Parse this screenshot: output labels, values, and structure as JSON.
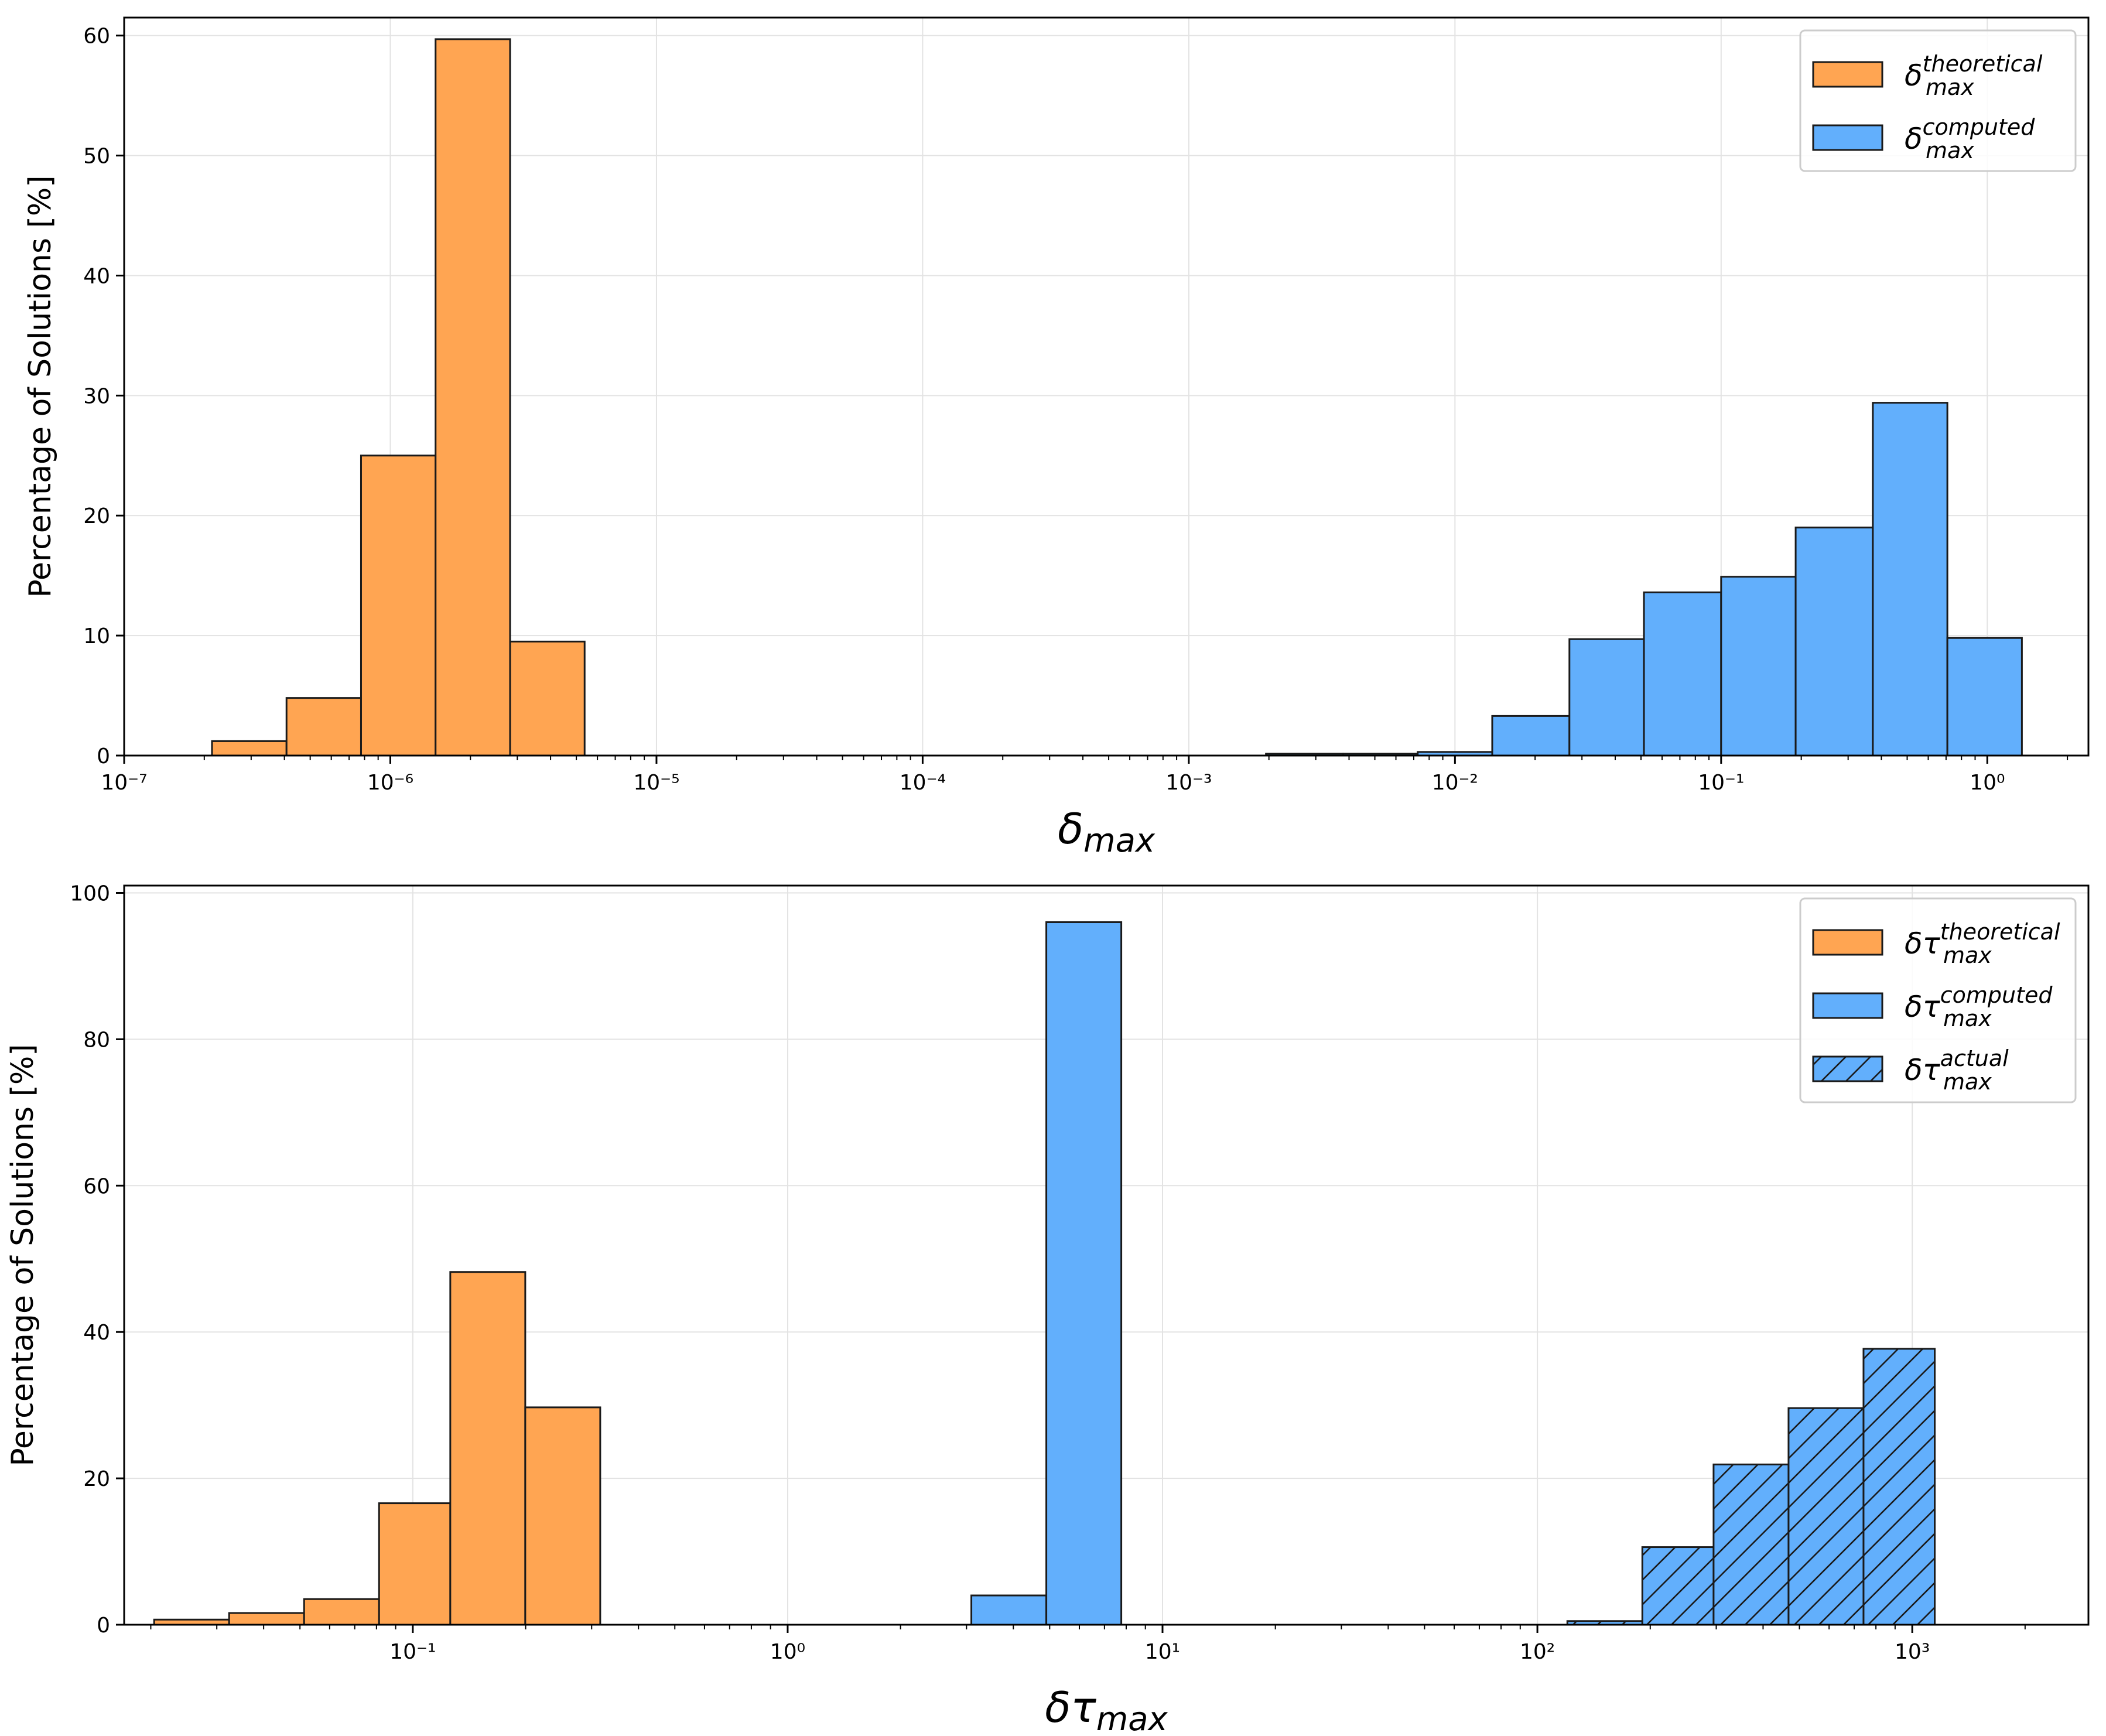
{
  "colors": {
    "theoretical": "#FFA552",
    "computed": "#62AFFC",
    "edge": "#1a1a1a"
  },
  "chart_data": [
    {
      "type": "bar",
      "title": "",
      "xscale": "log",
      "xlim_exp": [
        -7,
        0.38
      ],
      "ylim": [
        0,
        61.5
      ],
      "yticks": [
        0,
        10,
        20,
        30,
        40,
        50,
        60
      ],
      "ytick_labels": [
        "0",
        "10",
        "20",
        "30",
        "40",
        "50",
        "60"
      ],
      "xtick_labels": [
        "10⁻⁷",
        "10⁻⁶",
        "10⁻⁵",
        "10⁻⁴",
        "10⁻³",
        "10⁻²",
        "10⁻¹",
        "10⁰"
      ],
      "xtick_exps": [
        -7,
        -6,
        -5,
        -4,
        -3,
        -2,
        -1,
        0
      ],
      "xlabel": {
        "base": "δ",
        "sub": "max"
      },
      "ylabel": "Percentage of Solutions [%]",
      "legend": {
        "placement": "top-right",
        "entries": [
          {
            "base": "δ",
            "sup": "theoretical",
            "sub": "max",
            "color_key": "theoretical",
            "hatch": false
          },
          {
            "base": "δ",
            "sup": "computed",
            "sub": "max",
            "color_key": "computed",
            "hatch": false
          }
        ]
      },
      "series": [
        {
          "name": "δ_max theoretical",
          "color_key": "theoretical",
          "hatch": false,
          "bins": [
            {
              "from": -6.67,
              "to": -6.39,
              "value": 1.2
            },
            {
              "from": -6.39,
              "to": -6.11,
              "value": 4.8
            },
            {
              "from": -6.11,
              "to": -5.83,
              "value": 25.0
            },
            {
              "from": -5.83,
              "to": -5.55,
              "value": 59.7
            },
            {
              "from": -5.55,
              "to": -5.27,
              "value": 9.5
            }
          ]
        },
        {
          "name": "δ_max computed",
          "color_key": "computed",
          "hatch": false,
          "bins": [
            {
              "from": -2.71,
              "to": -2.42,
              "value": 0.15
            },
            {
              "from": -2.42,
              "to": -2.14,
              "value": 0.15
            },
            {
              "from": -2.14,
              "to": -1.86,
              "value": 0.3
            },
            {
              "from": -1.86,
              "to": -1.57,
              "value": 3.3
            },
            {
              "from": -1.57,
              "to": -1.29,
              "value": 9.7
            },
            {
              "from": -1.29,
              "to": -1.0,
              "value": 13.6
            },
            {
              "from": -1.0,
              "to": -0.72,
              "value": 14.9
            },
            {
              "from": -0.72,
              "to": -0.43,
              "value": 19.0
            },
            {
              "from": -0.43,
              "to": -0.15,
              "value": 29.4
            },
            {
              "from": -0.15,
              "to": 0.13,
              "value": 9.8
            }
          ]
        }
      ]
    },
    {
      "type": "bar",
      "title": "",
      "xscale": "log",
      "xlim_exp": [
        -1.77,
        3.47
      ],
      "ylim": [
        0,
        101
      ],
      "yticks": [
        0,
        20,
        40,
        60,
        80,
        100
      ],
      "ytick_labels": [
        "0",
        "20",
        "40",
        "60",
        "80",
        "100"
      ],
      "xtick_labels": [
        "10⁻¹",
        "10⁰",
        "10¹",
        "10²",
        "10³"
      ],
      "xtick_exps": [
        -1,
        0,
        1,
        2,
        3
      ],
      "xlabel": {
        "base": "δτ",
        "sub": "max"
      },
      "ylabel": "Percentage of Solutions [%]",
      "legend": {
        "placement": "top-right",
        "entries": [
          {
            "base": "δτ",
            "sup": "theoretical",
            "sub": "max",
            "color_key": "theoretical",
            "hatch": false
          },
          {
            "base": "δτ",
            "sup": "computed",
            "sub": "max",
            "color_key": "computed",
            "hatch": false
          },
          {
            "base": "δτ",
            "sup": "actual",
            "sub": "max",
            "color_key": "computed",
            "hatch": true
          }
        ]
      },
      "series": [
        {
          "name": "δτ_max theoretical",
          "color_key": "theoretical",
          "hatch": false,
          "bins": [
            {
              "from": -1.69,
              "to": -1.49,
              "value": 0.7
            },
            {
              "from": -1.49,
              "to": -1.29,
              "value": 1.6
            },
            {
              "from": -1.29,
              "to": -1.09,
              "value": 3.5
            },
            {
              "from": -1.09,
              "to": -0.9,
              "value": 16.6
            },
            {
              "from": -0.9,
              "to": -0.7,
              "value": 48.2
            },
            {
              "from": -0.7,
              "to": -0.5,
              "value": 29.7
            }
          ]
        },
        {
          "name": "δτ_max computed",
          "color_key": "computed",
          "hatch": false,
          "bins": [
            {
              "from": 0.49,
              "to": 0.69,
              "value": 4.0
            },
            {
              "from": 0.69,
              "to": 0.89,
              "value": 96.0
            }
          ]
        },
        {
          "name": "δτ_max actual",
          "color_key": "computed",
          "hatch": true,
          "bins": [
            {
              "from": 2.08,
              "to": 2.28,
              "value": 0.5
            },
            {
              "from": 2.28,
              "to": 2.47,
              "value": 10.6
            },
            {
              "from": 2.47,
              "to": 2.67,
              "value": 21.9
            },
            {
              "from": 2.67,
              "to": 2.87,
              "value": 29.6
            },
            {
              "from": 2.87,
              "to": 3.06,
              "value": 37.7
            }
          ]
        }
      ]
    }
  ]
}
